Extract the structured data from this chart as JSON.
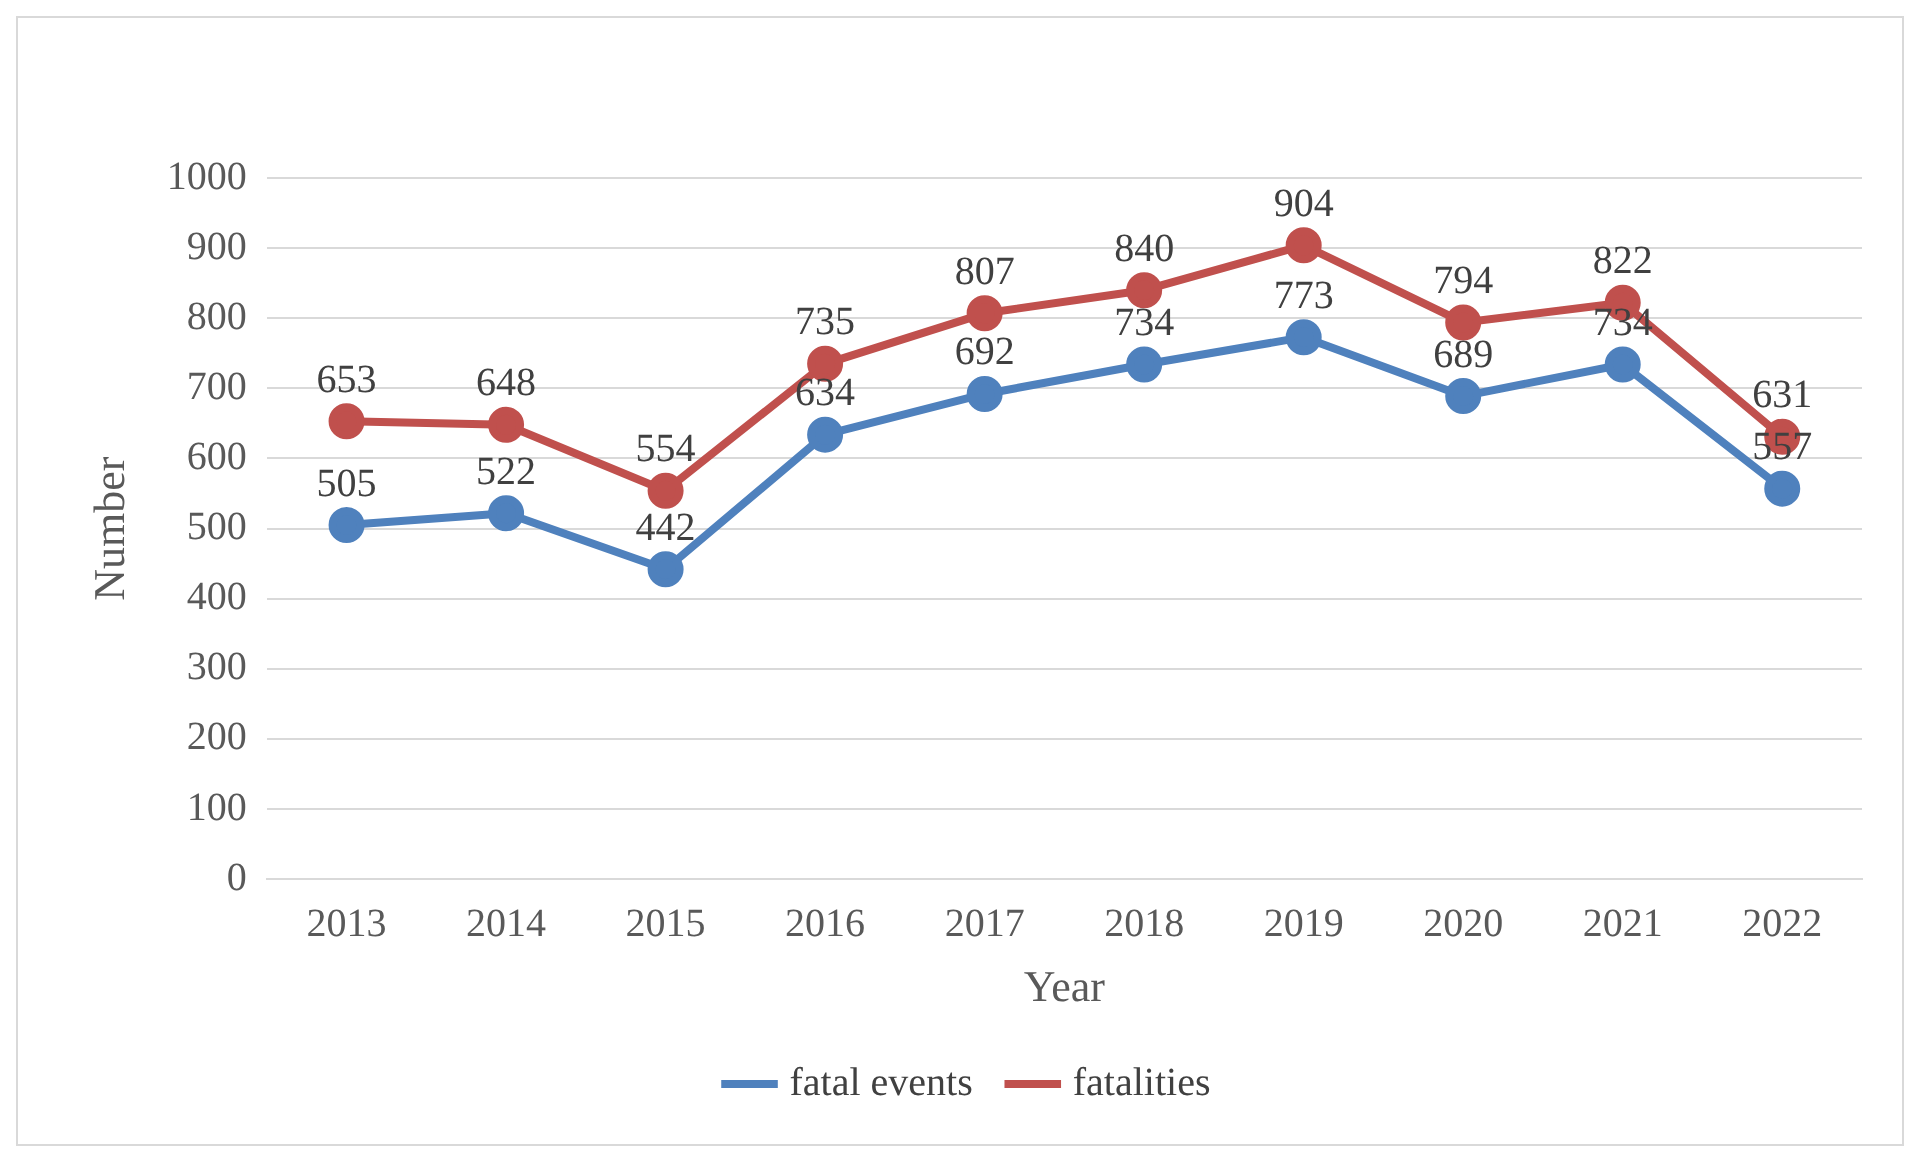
{
  "chart_data": {
    "type": "line",
    "xlabel": "Year",
    "ylabel": "Number",
    "categories": [
      "2013",
      "2014",
      "2015",
      "2016",
      "2017",
      "2018",
      "2019",
      "2020",
      "2021",
      "2022"
    ],
    "series": [
      {
        "name": "fatal events",
        "color": "#4f81bd",
        "values": [
          505,
          522,
          442,
          634,
          692,
          734,
          773,
          689,
          734,
          557
        ]
      },
      {
        "name": "fatalities",
        "color": "#c0504d",
        "values": [
          653,
          648,
          554,
          735,
          807,
          840,
          904,
          794,
          822,
          631
        ]
      }
    ],
    "ylim": [
      0,
      1000
    ],
    "yticks": [
      0,
      100,
      200,
      300,
      400,
      500,
      600,
      700,
      800,
      900,
      1000
    ],
    "grid": "y",
    "legend": "bottom",
    "marker": "circle",
    "line_style": "solid",
    "data_labels": true
  }
}
